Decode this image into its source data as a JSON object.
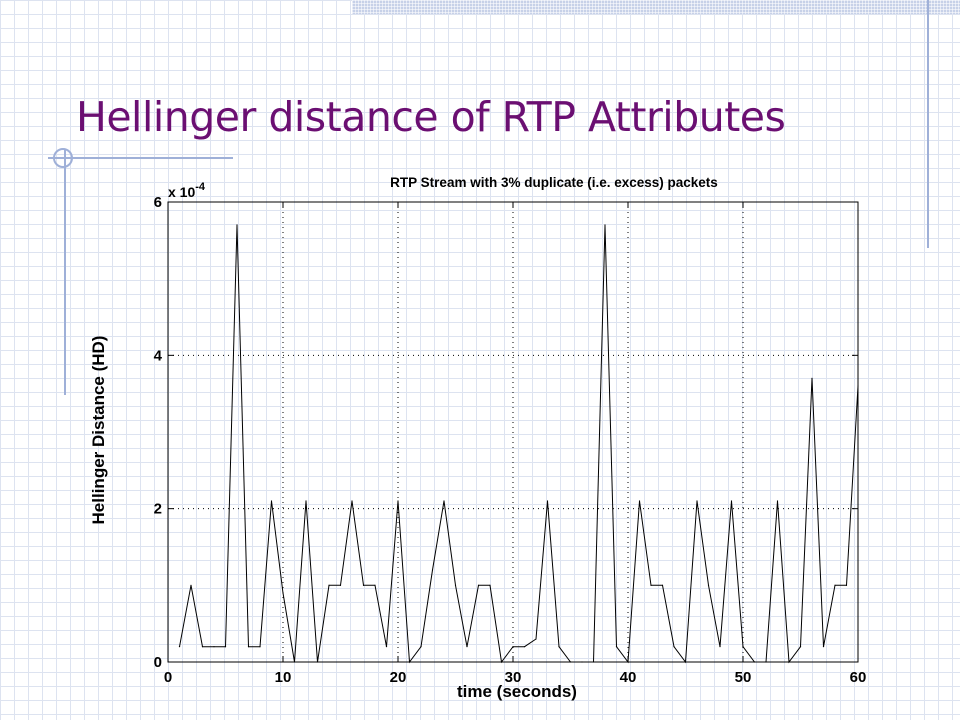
{
  "slide": {
    "title": "Hellinger distance of RTP Attributes"
  },
  "chart_data": {
    "type": "line",
    "title": "RTP Stream with 3% duplicate (i.e. excess) packets",
    "xlabel": "time (seconds)",
    "ylabel": "Hellinger Distance (HD)",
    "y_multiplier_base": "x 10",
    "y_multiplier_exp": "-4",
    "xlim": [
      0,
      60
    ],
    "ylim": [
      0,
      6
    ],
    "x_ticks": [
      "0",
      "10",
      "20",
      "30",
      "40",
      "50",
      "60"
    ],
    "y_ticks": [
      "0",
      "2",
      "4",
      "6"
    ],
    "grid": true,
    "series": [
      {
        "x": [
          1,
          2,
          3,
          4,
          5,
          6,
          7,
          8,
          9,
          10,
          11,
          12,
          13,
          14,
          15,
          16,
          17,
          18,
          19,
          20,
          21,
          22,
          23,
          24,
          25,
          26,
          27,
          28,
          29,
          30,
          31,
          32,
          33,
          34,
          35,
          36,
          37,
          38,
          39,
          40,
          41,
          42,
          43,
          44,
          45,
          46,
          47,
          48,
          49,
          50,
          51,
          52,
          53,
          54,
          55,
          56,
          57,
          58,
          59,
          60
        ],
        "y": [
          0.2,
          1.0,
          0.2,
          0.2,
          0.2,
          5.7,
          0.2,
          0.2,
          2.1,
          0.9,
          0.0,
          2.1,
          0.0,
          1.0,
          1.0,
          2.1,
          1.0,
          1.0,
          0.2,
          2.1,
          0.0,
          0.2,
          1.2,
          2.1,
          1.0,
          0.2,
          1.0,
          1.0,
          0.0,
          0.2,
          0.2,
          0.3,
          2.1,
          0.2,
          0.0,
          0.0,
          0.0,
          5.7,
          0.2,
          0.0,
          2.1,
          1.0,
          1.0,
          0.2,
          0.0,
          2.1,
          1.0,
          0.2,
          2.1,
          0.2,
          0.0,
          0.0,
          2.1,
          0.0,
          0.2,
          3.7,
          0.2,
          1.0,
          1.0,
          3.6
        ]
      }
    ]
  }
}
